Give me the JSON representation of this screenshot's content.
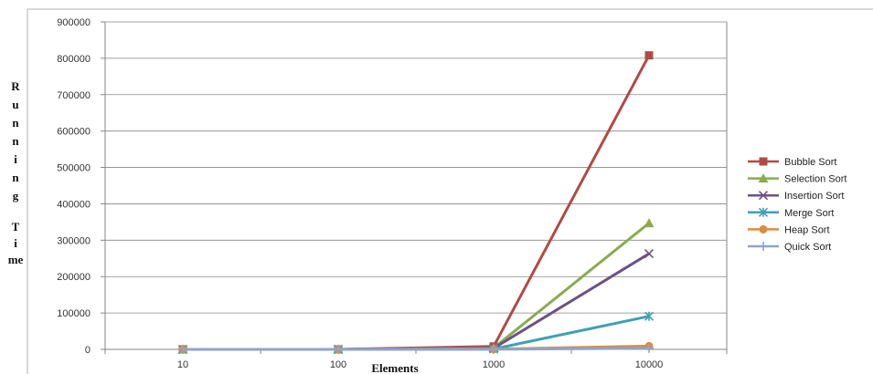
{
  "chart_data": {
    "type": "line",
    "title": "",
    "xlabel": "Elements",
    "ylabel": "Running Time",
    "categories": [
      "10",
      "100",
      "1000",
      "10000"
    ],
    "ylim": [
      0,
      900000
    ],
    "yticks": [
      "0",
      "100000",
      "200000",
      "300000",
      "400000",
      "500000",
      "600000",
      "700000",
      "800000",
      "900000"
    ],
    "grid": true,
    "legend_position": "right",
    "series": [
      {
        "name": "Bubble Sort",
        "values": [
          0,
          0,
          8000,
          808000
        ],
        "color": "#B14A44",
        "marker": "square"
      },
      {
        "name": "Selection Sort",
        "values": [
          0,
          0,
          4000,
          347000
        ],
        "color": "#8DAA4E",
        "marker": "triangle"
      },
      {
        "name": "Insertion Sort",
        "values": [
          0,
          0,
          3000,
          263000
        ],
        "color": "#6A5286",
        "marker": "x"
      },
      {
        "name": "Merge Sort",
        "values": [
          0,
          0,
          1000,
          91000
        ],
        "color": "#3FA0B5",
        "marker": "star"
      },
      {
        "name": "Heap Sort",
        "values": [
          0,
          0,
          500,
          9000
        ],
        "color": "#DF8A3A",
        "marker": "circle"
      },
      {
        "name": "Quick Sort",
        "values": [
          0,
          0,
          300,
          3000
        ],
        "color": "#8EA4CB",
        "marker": "plus"
      }
    ]
  }
}
